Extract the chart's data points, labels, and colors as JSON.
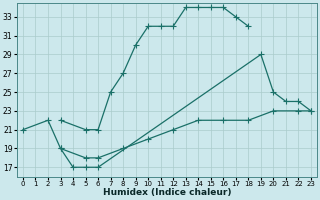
{
  "xlabel": "Humidex (Indice chaleur)",
  "bg_color": "#cce8ec",
  "grid_color": "#aacccc",
  "line_color": "#1a7068",
  "xlim": [
    -0.5,
    23.5
  ],
  "ylim": [
    16.0,
    34.5
  ],
  "xticks": [
    0,
    1,
    2,
    3,
    4,
    5,
    6,
    7,
    8,
    9,
    10,
    11,
    12,
    13,
    14,
    15,
    16,
    17,
    18,
    19,
    20,
    21,
    22,
    23
  ],
  "yticks": [
    17,
    19,
    21,
    23,
    25,
    27,
    29,
    31,
    33
  ],
  "curve1_x": [
    3,
    5,
    6,
    7,
    8,
    9,
    10,
    11,
    12,
    13,
    14,
    15,
    16,
    17,
    18
  ],
  "curve1_y": [
    22,
    21,
    21,
    25,
    27,
    30,
    32,
    32,
    32,
    34,
    34,
    34,
    34,
    33,
    32
  ],
  "curve2_x": [
    3,
    4,
    5,
    6,
    19,
    20,
    21,
    22,
    23
  ],
  "curve2_y": [
    19,
    17,
    17,
    17,
    29,
    25,
    24,
    24,
    23
  ],
  "curve3_x": [
    0,
    2,
    3,
    5,
    6,
    8,
    10,
    12,
    14,
    16,
    18,
    20,
    22,
    23
  ],
  "curve3_y": [
    21,
    22,
    19,
    18,
    18,
    19,
    20,
    21,
    22,
    22,
    22,
    23,
    23,
    23
  ]
}
